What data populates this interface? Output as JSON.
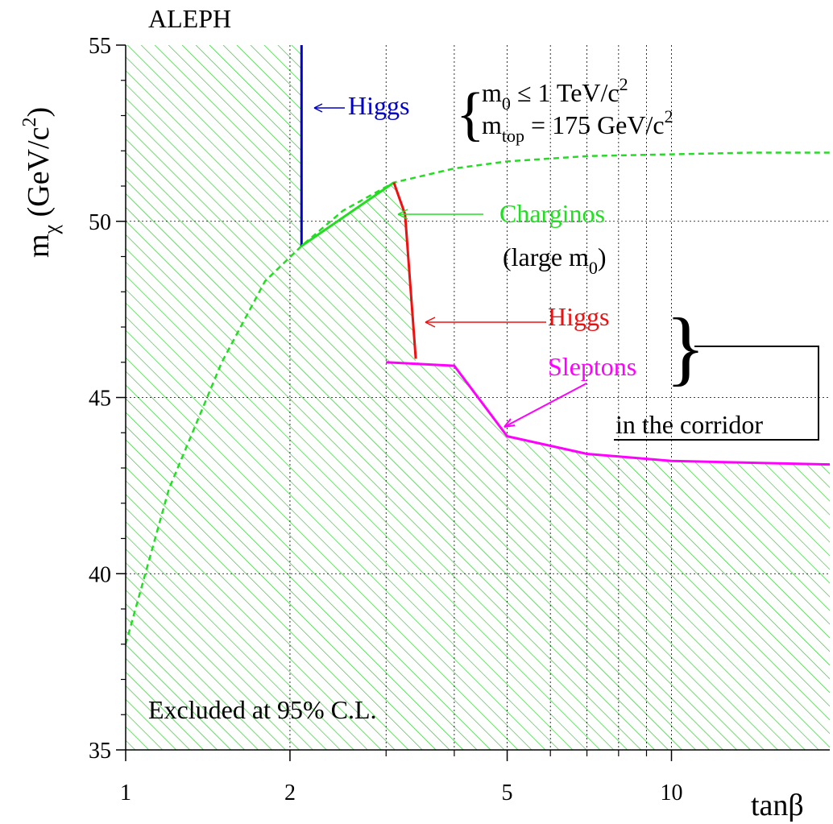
{
  "chart_data": {
    "type": "line",
    "experiment_label": "ALEPH",
    "xlabel": "tanβ",
    "ylabel": {
      "main": "m",
      "sub": "χ",
      "unit_open": " (GeV/c",
      "unit_sup": "2",
      "unit_close": ")"
    },
    "x_scale": "log",
    "xlim": [
      1,
      19.5
    ],
    "ylim": [
      35,
      55
    ],
    "x_ticks": [
      1,
      2,
      5,
      10
    ],
    "x_tick_labels": [
      "1",
      "2",
      "5",
      "10"
    ],
    "x_minor_ticks": [
      3,
      4,
      6,
      7,
      8,
      9,
      20
    ],
    "y_ticks": [
      35,
      40,
      45,
      50,
      55
    ],
    "y_tick_labels": [
      "35",
      "40",
      "45",
      "50",
      "55"
    ],
    "grid": true,
    "series": [
      {
        "name": "Higgs",
        "color": "#0000cc",
        "x": [
          2.1,
          2.1
        ],
        "y": [
          55,
          49.3
        ]
      },
      {
        "name": "Charginos",
        "color": "#22dd22",
        "x": [
          2.1,
          3.1
        ],
        "y": [
          49.3,
          51.1
        ]
      },
      {
        "name": "Higgs",
        "color": "#ee1111",
        "x": [
          3.1,
          3.25,
          3.4
        ],
        "y": [
          51.1,
          50.2,
          46.1
        ]
      },
      {
        "name": "Sleptons",
        "color": "#ff00ff",
        "x": [
          3.0,
          4.0,
          5.0,
          7.0,
          10.0,
          19.5
        ],
        "y": [
          46.0,
          45.9,
          43.9,
          43.4,
          43.2,
          43.1
        ]
      }
    ],
    "chargino_large_m0": {
      "color": "#22dd22",
      "x": [
        1.0,
        1.2,
        1.5,
        1.8,
        2.1,
        2.5,
        3.1,
        4.0,
        5.0,
        7.0,
        10.0,
        14.0,
        19.5
      ],
      "y": [
        38.0,
        42.4,
        46.0,
        48.3,
        49.3,
        50.3,
        51.1,
        51.5,
        51.7,
        51.85,
        51.9,
        51.95,
        51.95
      ]
    },
    "excluded_region": {
      "color": "#22cc22",
      "boundary_x": [
        1.0,
        1.2,
        1.5,
        1.8,
        2.1,
        2.1,
        3.1,
        3.25,
        3.4,
        4.0,
        5.0,
        7.0,
        10.0,
        19.5
      ],
      "boundary_y": [
        55.0,
        55.0,
        55.0,
        55.0,
        55.0,
        49.3,
        51.1,
        50.2,
        46.0,
        45.9,
        43.9,
        43.4,
        43.2,
        43.1
      ],
      "label": "Excluded at 95% C.L."
    },
    "annotations": {
      "higgs_blue": "Higgs",
      "m0_line": {
        "main": "m",
        "sub": "0",
        "rest": "  ≤ 1 TeV/c",
        "sup": "2"
      },
      "mtop_line": {
        "main": "m",
        "sub": "top",
        "rest": " = 175 GeV/c",
        "sup": "2"
      },
      "charginos": "Charginos",
      "large_m0": {
        "open": "(large m",
        "sub": "0",
        "close": ")"
      },
      "higgs_red": "Higgs",
      "sleptons": "Sleptons",
      "corridor": "in the corridor"
    },
    "colors": {
      "axis": "#000000",
      "grid": "#000000",
      "text": "#000000"
    }
  }
}
